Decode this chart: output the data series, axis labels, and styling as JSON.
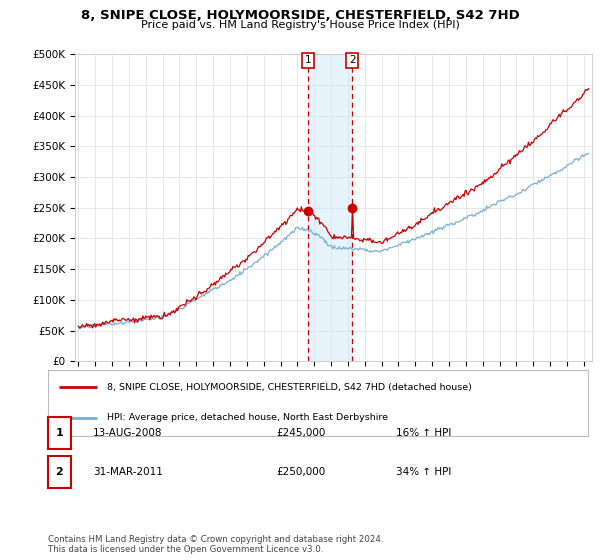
{
  "title": "8, SNIPE CLOSE, HOLYMOORSIDE, CHESTERFIELD, S42 7HD",
  "subtitle": "Price paid vs. HM Land Registry's House Price Index (HPI)",
  "ylabel_ticks": [
    "£0",
    "£50K",
    "£100K",
    "£150K",
    "£200K",
    "£250K",
    "£300K",
    "£350K",
    "£400K",
    "£450K",
    "£500K"
  ],
  "ytick_values": [
    0,
    50000,
    100000,
    150000,
    200000,
    250000,
    300000,
    350000,
    400000,
    450000,
    500000
  ],
  "ylim": [
    0,
    500000
  ],
  "xlim_start": 1994.8,
  "xlim_end": 2025.5,
  "hpi_color": "#7aaed6",
  "price_color": "#cc0000",
  "transaction1_x": 2008.617,
  "transaction1_y": 245000,
  "transaction2_x": 2011.247,
  "transaction2_y": 250000,
  "shade_color": "#d0e8f8",
  "shade_alpha": 0.5,
  "legend_line1": "8, SNIPE CLOSE, HOLYMOORSIDE, CHESTERFIELD, S42 7HD (detached house)",
  "legend_line2": "HPI: Average price, detached house, North East Derbyshire",
  "table_row1": [
    "1",
    "13-AUG-2008",
    "£245,000",
    "16% ↑ HPI"
  ],
  "table_row2": [
    "2",
    "31-MAR-2011",
    "£250,000",
    "34% ↑ HPI"
  ],
  "footer": "Contains HM Land Registry data © Crown copyright and database right 2024.\nThis data is licensed under the Open Government Licence v3.0.",
  "background_color": "#ffffff",
  "plot_bg_color": "#ffffff",
  "grid_color": "#dddddd"
}
